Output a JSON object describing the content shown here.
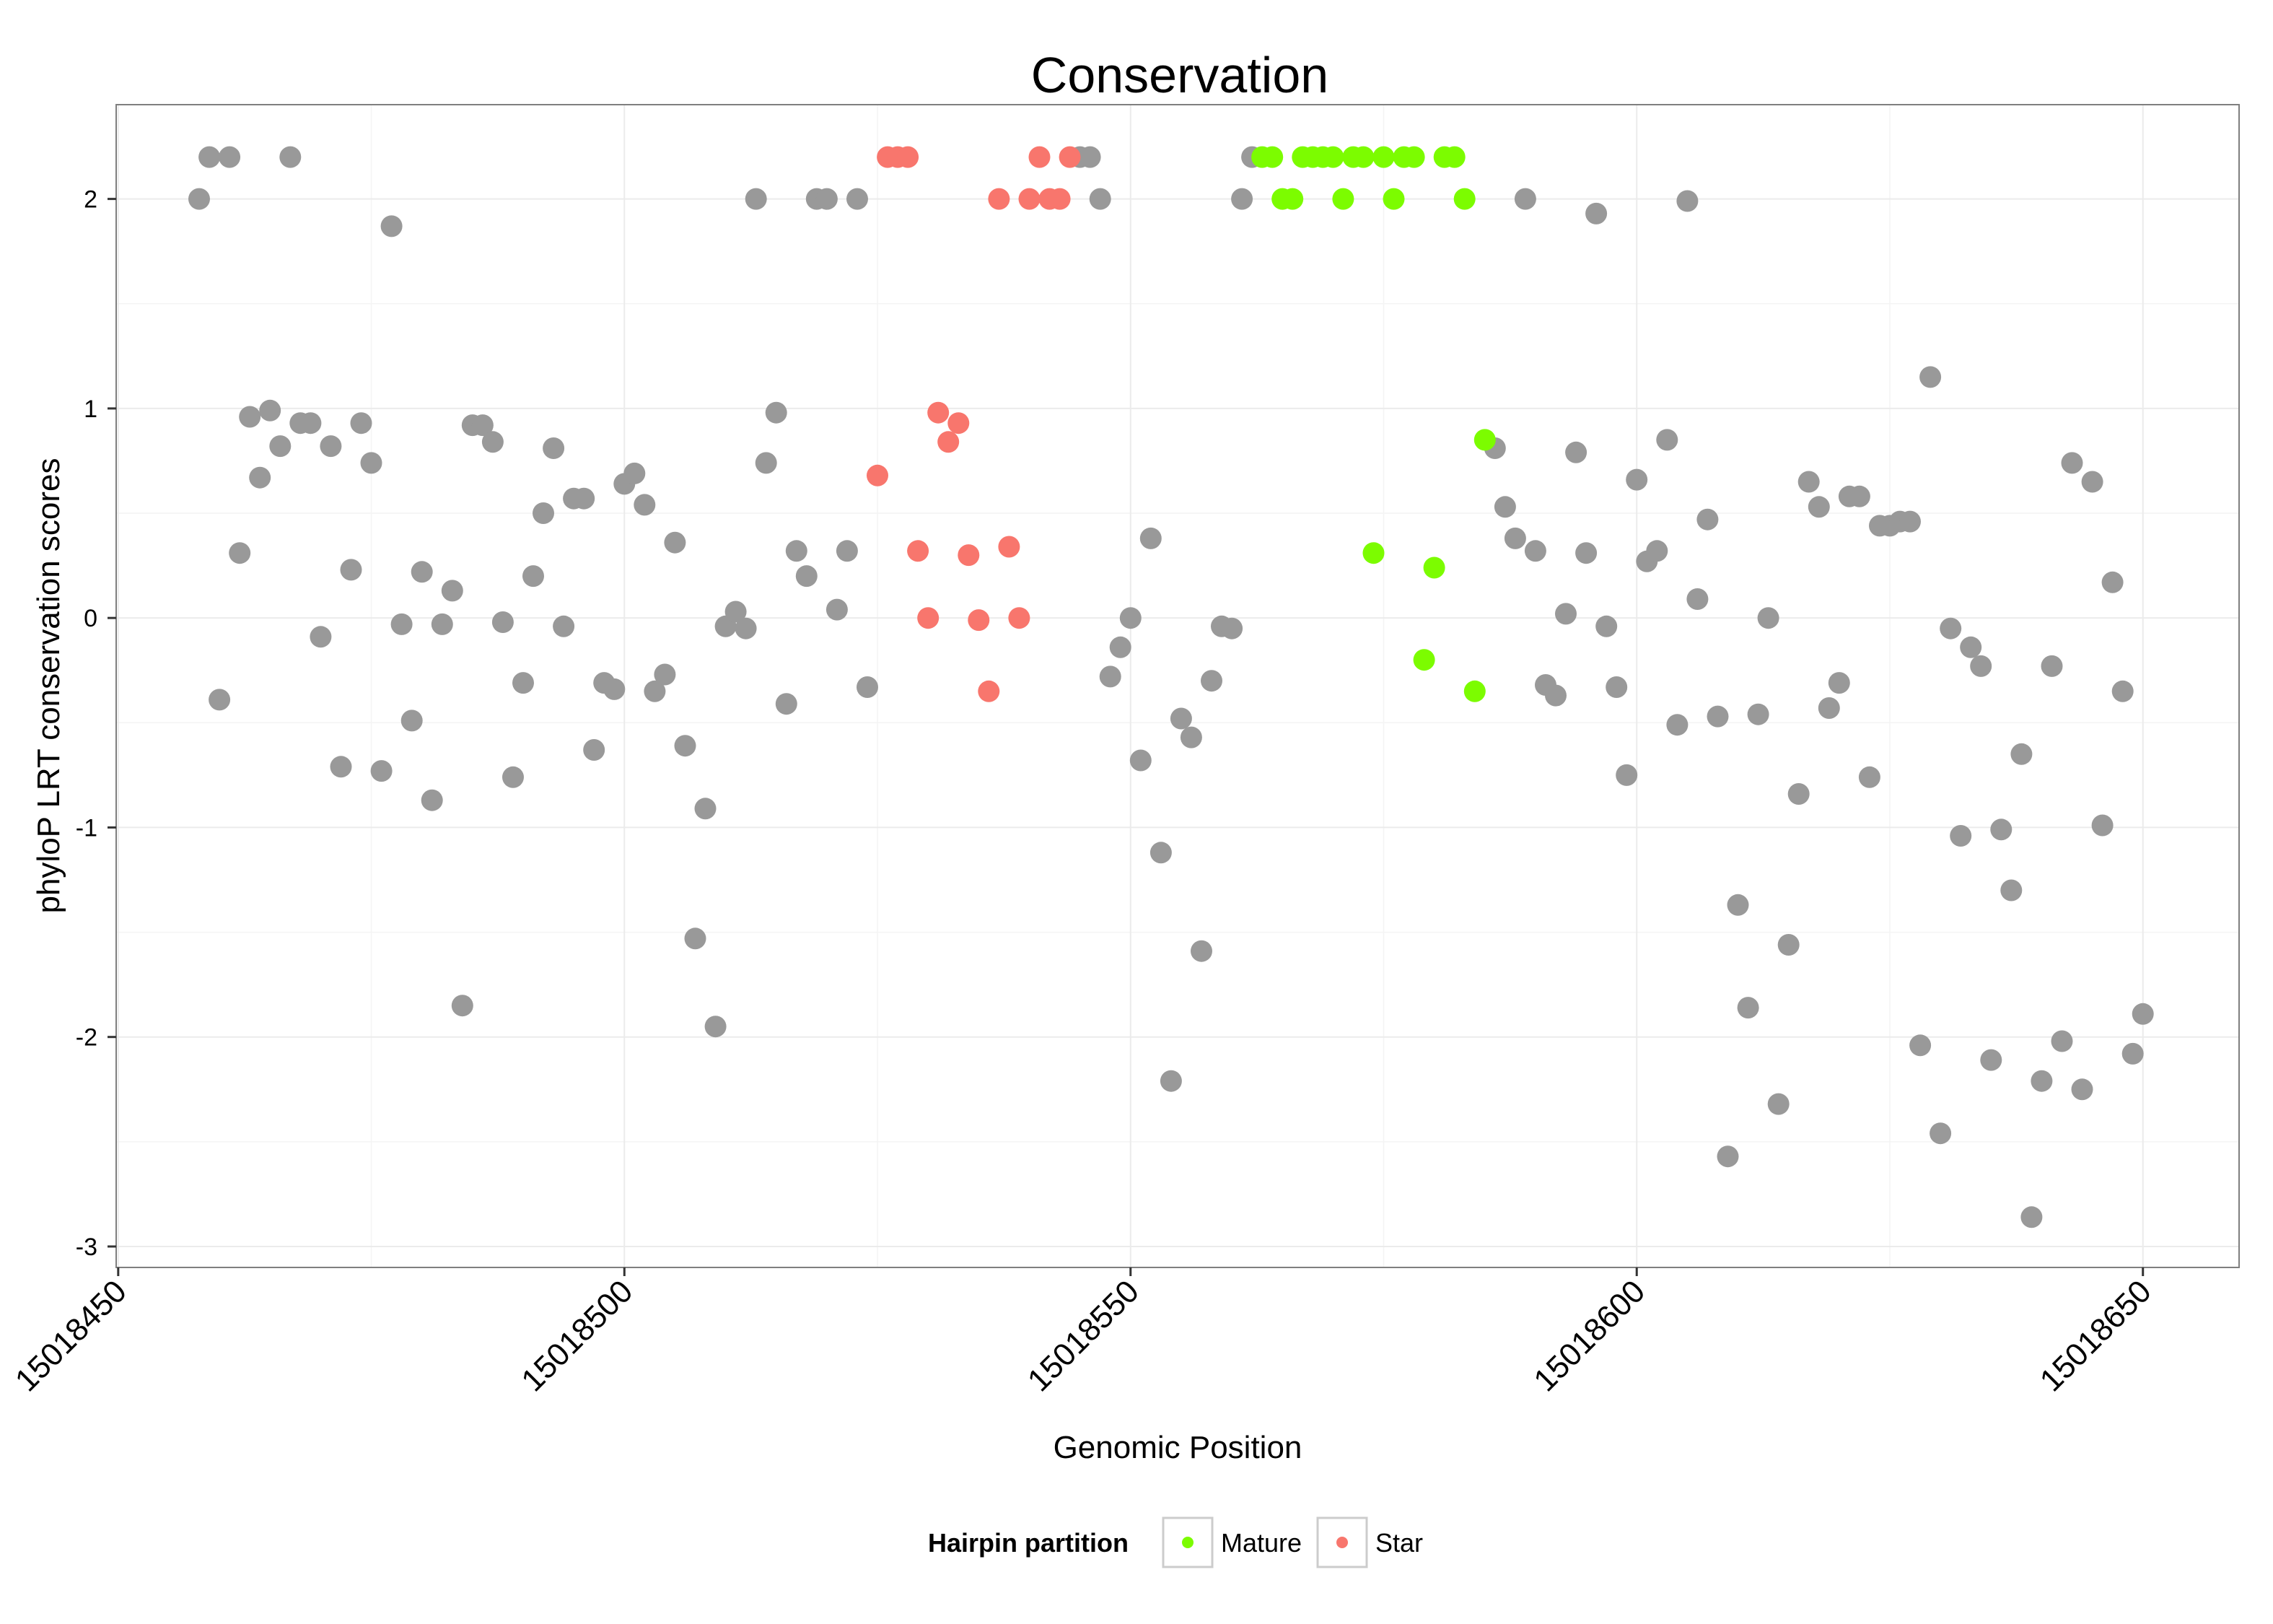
{
  "chart_data": {
    "type": "scatter",
    "title": "Conservation",
    "xlabel": "Genomic Position",
    "ylabel": "phyloP LRT conservation scores",
    "xlim": [
      15018449.8,
      15018659.5
    ],
    "ylim": [
      -3.1,
      2.45
    ],
    "x_ticks": [
      15018450,
      15018500,
      15018550,
      15018600,
      15018650
    ],
    "x_tick_labels": [
      "15018450",
      "15018500",
      "15018550",
      "15018600",
      "15018650"
    ],
    "y_ticks": [
      -3,
      -2,
      -1,
      0,
      1,
      2
    ],
    "y_tick_labels": [
      "-3",
      "-2",
      "-1",
      "0",
      "1",
      "2"
    ],
    "grid": true,
    "legend": {
      "title": "Hairpin partition",
      "position": "bottom",
      "entries": [
        {
          "name": "Mature",
          "color": "#7CFC00"
        },
        {
          "name": "Star",
          "color": "#F8766D"
        }
      ]
    },
    "colors": {
      "other": "#999999",
      "mature": "#7CFC00",
      "star": "#F8766D"
    },
    "series": [
      {
        "name": "",
        "group": "other",
        "points": [
          [
            15018458,
            2.0
          ],
          [
            15018459,
            2.2
          ],
          [
            15018460,
            -0.39
          ],
          [
            15018461,
            2.2
          ],
          [
            15018462,
            0.31
          ],
          [
            15018463,
            0.96
          ],
          [
            15018464,
            0.67
          ],
          [
            15018465,
            0.99
          ],
          [
            15018466,
            0.82
          ],
          [
            15018467,
            2.2
          ],
          [
            15018468,
            0.93
          ],
          [
            15018469,
            0.93
          ],
          [
            15018470,
            -0.09
          ],
          [
            15018471,
            0.82
          ],
          [
            15018472,
            -0.71
          ],
          [
            15018473,
            0.23
          ],
          [
            15018474,
            0.93
          ],
          [
            15018475,
            0.74
          ],
          [
            15018476,
            -0.73
          ],
          [
            15018477,
            1.87
          ],
          [
            15018478,
            -0.03
          ],
          [
            15018479,
            -0.49
          ],
          [
            15018480,
            0.22
          ],
          [
            15018481,
            -0.87
          ],
          [
            15018482,
            -0.03
          ],
          [
            15018483,
            0.13
          ],
          [
            15018484,
            -1.85
          ],
          [
            15018485,
            0.92
          ],
          [
            15018486,
            0.92
          ],
          [
            15018487,
            0.84
          ],
          [
            15018488,
            -0.02
          ],
          [
            15018489,
            -0.76
          ],
          [
            15018490,
            -0.31
          ],
          [
            15018491,
            0.2
          ],
          [
            15018492,
            0.5
          ],
          [
            15018493,
            0.81
          ],
          [
            15018494,
            -0.04
          ],
          [
            15018495,
            0.57
          ],
          [
            15018496,
            0.57
          ],
          [
            15018497,
            -0.63
          ],
          [
            15018498,
            -0.31
          ],
          [
            15018499,
            -0.34
          ],
          [
            15018500,
            0.64
          ],
          [
            15018501,
            0.69
          ],
          [
            15018502,
            0.54
          ],
          [
            15018503,
            -0.35
          ],
          [
            15018504,
            -0.27
          ],
          [
            15018505,
            0.36
          ],
          [
            15018506,
            -0.61
          ],
          [
            15018507,
            -1.53
          ],
          [
            15018508,
            -0.91
          ],
          [
            15018509,
            -1.95
          ],
          [
            15018510,
            -0.04
          ],
          [
            15018511,
            0.03
          ],
          [
            15018512,
            -0.05
          ],
          [
            15018513,
            2.0
          ],
          [
            15018514,
            0.74
          ],
          [
            15018515,
            0.98
          ],
          [
            15018516,
            -0.41
          ],
          [
            15018517,
            0.32
          ],
          [
            15018518,
            0.2
          ],
          [
            15018519,
            2.0
          ],
          [
            15018520,
            2.0
          ],
          [
            15018521,
            0.04
          ],
          [
            15018522,
            0.32
          ],
          [
            15018523,
            2.0
          ],
          [
            15018524,
            -0.33
          ],
          [
            15018545,
            2.2
          ],
          [
            15018546,
            2.2
          ],
          [
            15018547,
            2.0
          ],
          [
            15018548,
            -0.28
          ],
          [
            15018549,
            -0.14
          ],
          [
            15018550,
            0.0
          ],
          [
            15018551,
            -0.68
          ],
          [
            15018552,
            0.38
          ],
          [
            15018553,
            -1.12
          ],
          [
            15018554,
            -2.21
          ],
          [
            15018555,
            -0.48
          ],
          [
            15018556,
            -0.57
          ],
          [
            15018557,
            -1.59
          ],
          [
            15018558,
            -0.3
          ],
          [
            15018559,
            -0.04
          ],
          [
            15018560,
            -0.05
          ],
          [
            15018561,
            2.0
          ],
          [
            15018562,
            2.2
          ],
          [
            15018586,
            0.81
          ],
          [
            15018587,
            0.53
          ],
          [
            15018588,
            0.38
          ],
          [
            15018589,
            2.0
          ],
          [
            15018590,
            0.32
          ],
          [
            15018591,
            -0.32
          ],
          [
            15018592,
            -0.37
          ],
          [
            15018593,
            0.02
          ],
          [
            15018594,
            0.79
          ],
          [
            15018595,
            0.31
          ],
          [
            15018596,
            1.93
          ],
          [
            15018597,
            -0.04
          ],
          [
            15018598,
            -0.33
          ],
          [
            15018599,
            -0.75
          ],
          [
            15018600,
            0.66
          ],
          [
            15018601,
            0.27
          ],
          [
            15018602,
            0.32
          ],
          [
            15018603,
            0.85
          ],
          [
            15018604,
            -0.51
          ],
          [
            15018605,
            1.99
          ],
          [
            15018606,
            0.09
          ],
          [
            15018607,
            0.47
          ],
          [
            15018608,
            -0.47
          ],
          [
            15018609,
            -2.57
          ],
          [
            15018610,
            -1.37
          ],
          [
            15018611,
            -1.86
          ],
          [
            15018612,
            -0.46
          ],
          [
            15018613,
            0.0
          ],
          [
            15018614,
            -2.32
          ],
          [
            15018615,
            -1.56
          ],
          [
            15018616,
            -0.84
          ],
          [
            15018617,
            0.65
          ],
          [
            15018618,
            0.53
          ],
          [
            15018619,
            -0.43
          ],
          [
            15018620,
            -0.31
          ],
          [
            15018621,
            0.58
          ],
          [
            15018622,
            0.58
          ],
          [
            15018623,
            -0.76
          ],
          [
            15018624,
            0.44
          ],
          [
            15018625,
            0.44
          ],
          [
            15018626,
            0.46
          ],
          [
            15018627,
            0.46
          ],
          [
            15018628,
            -2.04
          ],
          [
            15018629,
            1.15
          ],
          [
            15018630,
            -2.46
          ],
          [
            15018631,
            -0.05
          ],
          [
            15018632,
            -1.04
          ],
          [
            15018633,
            -0.14
          ],
          [
            15018634,
            -0.23
          ],
          [
            15018635,
            -2.11
          ],
          [
            15018636,
            -1.01
          ],
          [
            15018637,
            -1.3
          ],
          [
            15018638,
            -0.65
          ],
          [
            15018639,
            -2.86
          ],
          [
            15018640,
            -2.21
          ],
          [
            15018641,
            -0.23
          ],
          [
            15018642,
            -2.02
          ],
          [
            15018643,
            0.74
          ],
          [
            15018644,
            -2.25
          ],
          [
            15018645,
            0.65
          ],
          [
            15018646,
            -0.99
          ],
          [
            15018647,
            0.17
          ],
          [
            15018648,
            -0.35
          ],
          [
            15018649,
            -2.08
          ],
          [
            15018650,
            -1.89
          ]
        ]
      },
      {
        "name": "Star",
        "group": "star",
        "points": [
          [
            15018525,
            0.68
          ],
          [
            15018526,
            2.2
          ],
          [
            15018527,
            2.2
          ],
          [
            15018528,
            2.2
          ],
          [
            15018529,
            0.32
          ],
          [
            15018530,
            0.0
          ],
          [
            15018531,
            0.98
          ],
          [
            15018532,
            0.84
          ],
          [
            15018533,
            0.93
          ],
          [
            15018534,
            0.3
          ],
          [
            15018535,
            -0.01
          ],
          [
            15018536,
            -0.35
          ],
          [
            15018537,
            2.0
          ],
          [
            15018538,
            0.34
          ],
          [
            15018539,
            0.0
          ],
          [
            15018540,
            2.0
          ],
          [
            15018541,
            2.2
          ],
          [
            15018542,
            2.0
          ],
          [
            15018543,
            2.0
          ],
          [
            15018544,
            2.2
          ]
        ]
      },
      {
        "name": "Mature",
        "group": "mature",
        "points": [
          [
            15018563,
            2.2
          ],
          [
            15018564,
            2.2
          ],
          [
            15018565,
            2.0
          ],
          [
            15018566,
            2.0
          ],
          [
            15018567,
            2.2
          ],
          [
            15018568,
            2.2
          ],
          [
            15018569,
            2.2
          ],
          [
            15018570,
            2.2
          ],
          [
            15018571,
            2.0
          ],
          [
            15018572,
            2.2
          ],
          [
            15018573,
            2.2
          ],
          [
            15018574,
            0.31
          ],
          [
            15018575,
            2.2
          ],
          [
            15018576,
            2.0
          ],
          [
            15018577,
            2.2
          ],
          [
            15018578,
            2.2
          ],
          [
            15018579,
            -0.2
          ],
          [
            15018580,
            0.24
          ],
          [
            15018581,
            2.2
          ],
          [
            15018582,
            2.2
          ],
          [
            15018583,
            2.0
          ],
          [
            15018584,
            -0.35
          ],
          [
            15018585,
            0.85
          ]
        ]
      }
    ]
  }
}
